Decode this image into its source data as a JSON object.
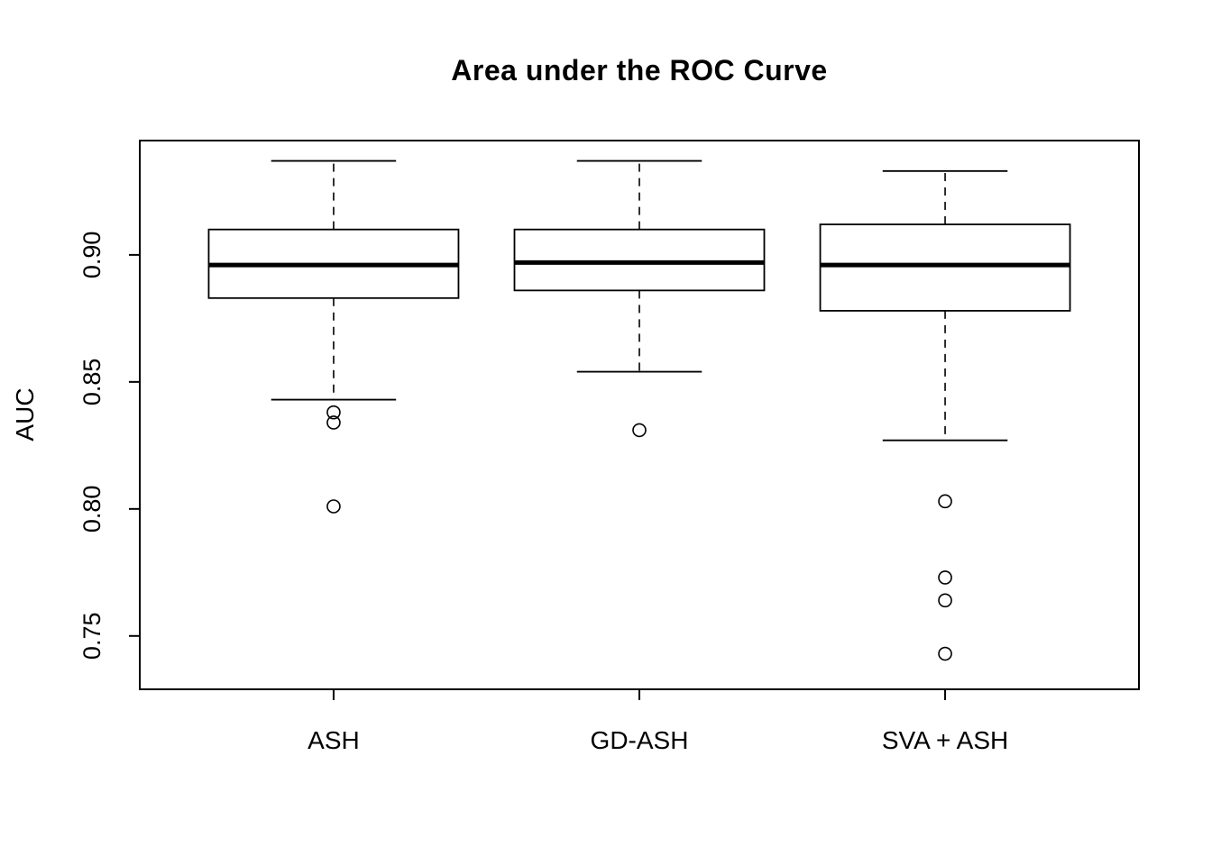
{
  "chart_data": {
    "type": "boxplot",
    "title": "Area under the ROC Curve",
    "ylabel": "AUC",
    "xlabel": "",
    "ylim": [
      0.729,
      0.945
    ],
    "yticks": [
      "0.75",
      "0.80",
      "0.85",
      "0.90"
    ],
    "grid": false,
    "legend": "none",
    "categories": [
      "ASH",
      "GD-ASH",
      "SVA + ASH"
    ],
    "series": [
      {
        "name": "ASH",
        "whisker_low": 0.843,
        "q1": 0.883,
        "median": 0.896,
        "q3": 0.91,
        "whisker_high": 0.937,
        "outliers": [
          0.838,
          0.834,
          0.801
        ]
      },
      {
        "name": "GD-ASH",
        "whisker_low": 0.854,
        "q1": 0.886,
        "median": 0.897,
        "q3": 0.91,
        "whisker_high": 0.937,
        "outliers": [
          0.831
        ]
      },
      {
        "name": "SVA + ASH",
        "whisker_low": 0.827,
        "q1": 0.878,
        "median": 0.896,
        "q3": 0.912,
        "whisker_high": 0.933,
        "outliers": [
          0.803,
          0.773,
          0.764,
          0.743
        ]
      }
    ]
  }
}
